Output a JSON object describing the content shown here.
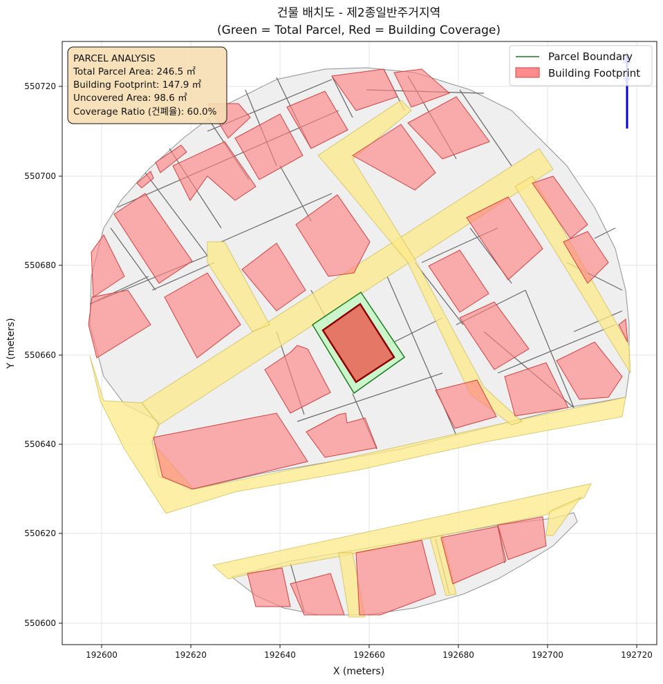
{
  "title_line1": "건물 배치도 - 제2종일반주거지역",
  "title_line2": "(Green = Total Parcel, Red = Building Coverage)",
  "xlabel": "X (meters)",
  "ylabel": "Y (meters)",
  "x_ticks": [
    "192600",
    "192620",
    "192640",
    "192660",
    "192680",
    "192700",
    "192720"
  ],
  "y_ticks": [
    "550600",
    "550620",
    "550640",
    "550660",
    "550680",
    "550700",
    "550720"
  ],
  "legend": {
    "parcel_boundary": "Parcel Boundary",
    "building_footprint": "Building Footprint"
  },
  "info": {
    "heading": "PARCEL ANALYSIS",
    "total_area": "Total Parcel Area: 246.5 ㎡",
    "footprint": "Building Footprint: 147.9 ㎡",
    "uncovered": "Uncovered Area: 98.6 ㎡",
    "coverage": "Coverage Ratio (건폐율): 60.0%"
  },
  "colors": {
    "parcel_green": "#1a7a1a",
    "parcel_fill": "#c8f5c8",
    "building_red": "#ff8080",
    "road_yellow": "#fde98a",
    "lot_gray": "#f0f0f0",
    "info_box": "#f5deb3",
    "north_arrow": "#0000dd"
  },
  "chart_data": {
    "type": "map",
    "xlim": [
      192591,
      192725
    ],
    "ylim": [
      550595,
      550730
    ],
    "grid": true,
    "legend_placement": "top-right",
    "highlighted_parcel": {
      "total_area_m2": 246.5,
      "building_footprint_m2": 147.9,
      "uncovered_area_m2": 98.6,
      "coverage_ratio_pct": 60.0
    }
  }
}
